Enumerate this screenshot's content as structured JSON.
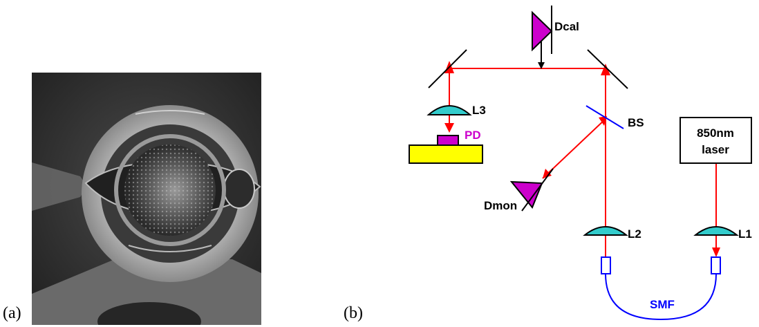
{
  "panels": {
    "a_label": "(a)",
    "b_label": "(b)"
  },
  "diagram": {
    "labels": {
      "dcal": "Dcal",
      "l3": "L3",
      "pd": "PD",
      "bs": "BS",
      "dmon": "Dmon",
      "l2": "L2",
      "l1": "L1",
      "laser_line1": "850nm",
      "laser_line2": "laser",
      "smf": "SMF"
    },
    "colors": {
      "beam": "#ff0000",
      "detector": "#cc00cc",
      "lens": "#33cccc",
      "fiber": "#0000ff",
      "mount": "#ffff00",
      "pd_label": "#cc00cc",
      "smf_label": "#0000ff"
    }
  }
}
